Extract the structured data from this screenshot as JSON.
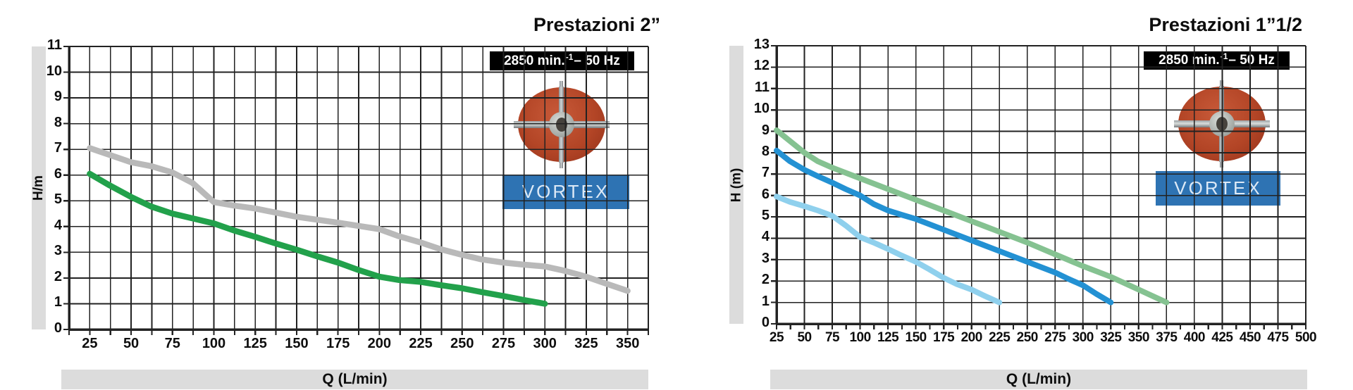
{
  "page": {
    "background": "#ffffff"
  },
  "colors": {
    "grid": "#222222",
    "strip_bg": "#dcdcdc",
    "badge_bg": "#000000",
    "badge_text": "#ffffff",
    "vortex_bg": "#2e73b3",
    "vortex_text": "#dce9f6",
    "impeller_red": "#b34526",
    "curve_gray": "#b9b9b9",
    "curve_green_2in": "#22a14b",
    "curve_green_15in": "#85c291",
    "curve_blue_15in": "#2391d3",
    "curve_lightblue_15in": "#8fd0ed"
  },
  "chart_data": [
    {
      "type": "line",
      "title": "Prestazioni 2”",
      "badge": {
        "prefix": "2850 min.",
        "sup": "-1",
        "suffix": "– 50 Hz"
      },
      "vortex_label": "VORTEX",
      "xlabel": "Q (L/min)",
      "ylabel": "H/m",
      "x_axis": {
        "min": 12.5,
        "max": 362.5,
        "grid_step": 12.5,
        "minor_tick_step": 12.5,
        "ticks": [
          25,
          50,
          75,
          100,
          125,
          150,
          175,
          200,
          225,
          250,
          275,
          300,
          325,
          350
        ]
      },
      "y_axis": {
        "min": 0,
        "max": 11,
        "grid_step": 1,
        "ticks": [
          0,
          1,
          2,
          3,
          4,
          5,
          6,
          7,
          8,
          9,
          10,
          11
        ]
      },
      "legend": "none",
      "series": [
        {
          "name": "gray-curve",
          "color": "#b9b9b9",
          "points": [
            [
              25,
              7.05
            ],
            [
              50,
              6.5
            ],
            [
              62,
              6.35
            ],
            [
              75,
              6.1
            ],
            [
              87,
              5.7
            ],
            [
              100,
              4.95
            ],
            [
              112,
              4.82
            ],
            [
              125,
              4.7
            ],
            [
              150,
              4.38
            ],
            [
              175,
              4.15
            ],
            [
              200,
              3.9
            ],
            [
              212,
              3.62
            ],
            [
              225,
              3.38
            ],
            [
              237,
              3.12
            ],
            [
              250,
              2.9
            ],
            [
              262,
              2.72
            ],
            [
              275,
              2.6
            ],
            [
              287,
              2.52
            ],
            [
              300,
              2.45
            ],
            [
              312,
              2.28
            ],
            [
              325,
              2.05
            ],
            [
              337,
              1.78
            ],
            [
              350,
              1.5
            ]
          ]
        },
        {
          "name": "green-curve",
          "color": "#22a14b",
          "points": [
            [
              25,
              6.05
            ],
            [
              37,
              5.6
            ],
            [
              50,
              5.15
            ],
            [
              62,
              4.78
            ],
            [
              75,
              4.5
            ],
            [
              87,
              4.32
            ],
            [
              100,
              4.12
            ],
            [
              112,
              3.85
            ],
            [
              125,
              3.6
            ],
            [
              137,
              3.35
            ],
            [
              150,
              3.1
            ],
            [
              162,
              2.85
            ],
            [
              175,
              2.6
            ],
            [
              187,
              2.32
            ],
            [
              200,
              2.05
            ],
            [
              212,
              1.92
            ],
            [
              225,
              1.85
            ],
            [
              237,
              1.72
            ],
            [
              250,
              1.6
            ],
            [
              262,
              1.45
            ],
            [
              275,
              1.3
            ],
            [
              287,
              1.15
            ],
            [
              300,
              1.0
            ]
          ]
        }
      ]
    },
    {
      "type": "line",
      "title": "Prestazioni 1”1/2",
      "badge": {
        "prefix": "2850 min.",
        "sup": "-1",
        "suffix": "– 50 Hz"
      },
      "vortex_label": "VORTEX",
      "xlabel": "Q (L/min)",
      "ylabel": "H (m)",
      "x_axis": {
        "min": 25,
        "max": 500,
        "grid_step": 25,
        "minor_tick_step": 12.5,
        "ticks": [
          25,
          50,
          75,
          100,
          125,
          150,
          175,
          200,
          225,
          250,
          275,
          300,
          325,
          350,
          375,
          400,
          425,
          450,
          475,
          500
        ]
      },
      "y_axis": {
        "min": 0,
        "max": 13,
        "grid_step": 1,
        "ticks": [
          0,
          1,
          2,
          3,
          4,
          5,
          6,
          7,
          8,
          9,
          10,
          11,
          12,
          13
        ]
      },
      "legend": "none",
      "series": [
        {
          "name": "green-curve",
          "color": "#85c291",
          "points": [
            [
              25,
              9.05
            ],
            [
              50,
              8.0
            ],
            [
              62,
              7.6
            ],
            [
              75,
              7.3
            ],
            [
              100,
              6.8
            ],
            [
              125,
              6.3
            ],
            [
              150,
              5.8
            ],
            [
              175,
              5.3
            ],
            [
              200,
              4.8
            ],
            [
              225,
              4.3
            ],
            [
              250,
              3.8
            ],
            [
              275,
              3.25
            ],
            [
              300,
              2.7
            ],
            [
              325,
              2.2
            ],
            [
              350,
              1.6
            ],
            [
              375,
              1.0
            ]
          ]
        },
        {
          "name": "blue-curve",
          "color": "#2391d3",
          "points": [
            [
              25,
              8.1
            ],
            [
              37,
              7.6
            ],
            [
              50,
              7.2
            ],
            [
              62,
              6.9
            ],
            [
              75,
              6.6
            ],
            [
              87,
              6.3
            ],
            [
              100,
              6.0
            ],
            [
              112,
              5.6
            ],
            [
              125,
              5.3
            ],
            [
              137,
              5.1
            ],
            [
              150,
              4.9
            ],
            [
              175,
              4.4
            ],
            [
              200,
              3.9
            ],
            [
              225,
              3.4
            ],
            [
              250,
              2.9
            ],
            [
              275,
              2.4
            ],
            [
              287,
              2.1
            ],
            [
              300,
              1.8
            ],
            [
              312,
              1.4
            ],
            [
              325,
              1.0
            ]
          ]
        },
        {
          "name": "lightblue-curve",
          "color": "#8fd0ed",
          "points": [
            [
              25,
              5.95
            ],
            [
              37,
              5.7
            ],
            [
              50,
              5.5
            ],
            [
              62,
              5.3
            ],
            [
              75,
              5.05
            ],
            [
              87,
              4.6
            ],
            [
              100,
              4.05
            ],
            [
              112,
              3.8
            ],
            [
              125,
              3.5
            ],
            [
              137,
              3.2
            ],
            [
              150,
              2.9
            ],
            [
              162,
              2.55
            ],
            [
              175,
              2.15
            ],
            [
              187,
              1.85
            ],
            [
              200,
              1.6
            ],
            [
              212,
              1.3
            ],
            [
              225,
              1.0
            ]
          ]
        }
      ]
    }
  ]
}
